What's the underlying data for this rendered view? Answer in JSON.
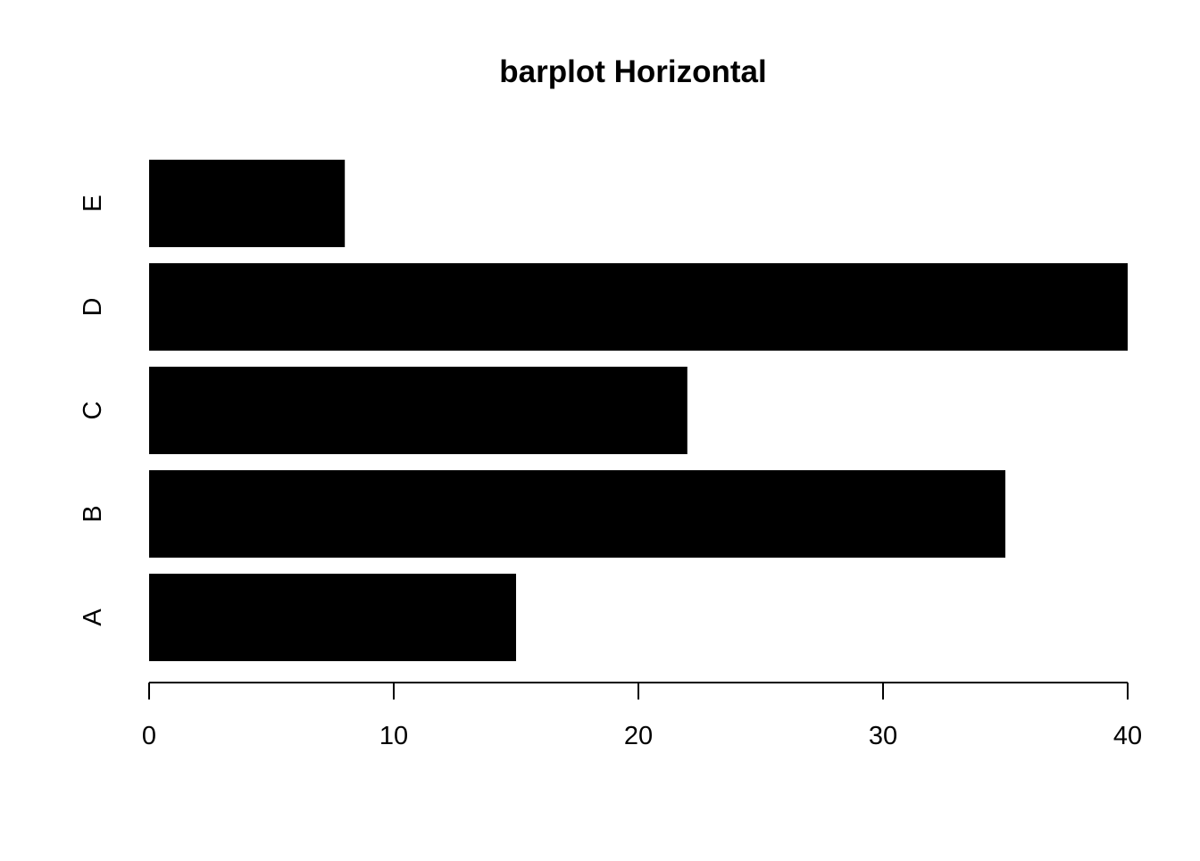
{
  "chart_data": {
    "type": "bar",
    "orientation": "horizontal",
    "title": "barplot Horizontal",
    "categories": [
      "A",
      "B",
      "C",
      "D",
      "E"
    ],
    "values": [
      15,
      35,
      22,
      40,
      8
    ],
    "xlabel": "",
    "ylabel": "",
    "xlim": [
      0,
      40
    ],
    "xticks": [
      "0",
      "10",
      "20",
      "30",
      "40"
    ],
    "xtick_values": [
      0,
      10,
      20,
      30,
      40
    ],
    "bar_color": "#000000",
    "grid": false,
    "legend": "none"
  }
}
